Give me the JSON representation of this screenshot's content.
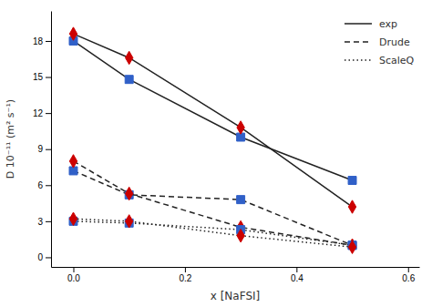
{
  "chart_data": {
    "type": "line",
    "xlabel": "x [NaFSI]",
    "ylabel": "D 10⁻¹¹ (m² s⁻¹)",
    "x": [
      0.0,
      0.1,
      0.3,
      0.5
    ],
    "series": [
      {
        "name": "exp",
        "color": "#3060c8",
        "marker": "square",
        "line_style": "solid",
        "values": [
          18.0,
          14.8,
          10.0,
          6.4
        ]
      },
      {
        "name": "exp",
        "color": "#cc0000",
        "marker": "diamond",
        "line_style": "solid",
        "values": [
          18.6,
          16.6,
          10.8,
          4.2
        ]
      },
      {
        "name": "Drude",
        "color": "#3060c8",
        "marker": "square",
        "line_style": "dashed",
        "values": [
          7.2,
          5.2,
          4.8,
          1.0
        ]
      },
      {
        "name": "Drude",
        "color": "#cc0000",
        "marker": "diamond",
        "line_style": "dashed",
        "values": [
          8.0,
          5.3,
          2.5,
          1.0
        ]
      },
      {
        "name": "ScaleQ",
        "color": "#3060c8",
        "marker": "square",
        "line_style": "dotted",
        "values": [
          3.0,
          2.85,
          2.3,
          1.0
        ]
      },
      {
        "name": "ScaleQ",
        "color": "#cc0000",
        "marker": "diamond",
        "line_style": "dotted",
        "values": [
          3.2,
          3.0,
          1.8,
          0.85
        ]
      }
    ],
    "xlim": [
      -0.04,
      0.62
    ],
    "ylim": [
      -0.8,
      20.5
    ],
    "xticks": [
      {
        "value": 0.0,
        "label": "0.0"
      },
      0.2,
      0.4,
      0.6
    ],
    "yticks": [
      0,
      3,
      6,
      9,
      12,
      15,
      18
    ],
    "grid": false,
    "legend": "upper right"
  }
}
